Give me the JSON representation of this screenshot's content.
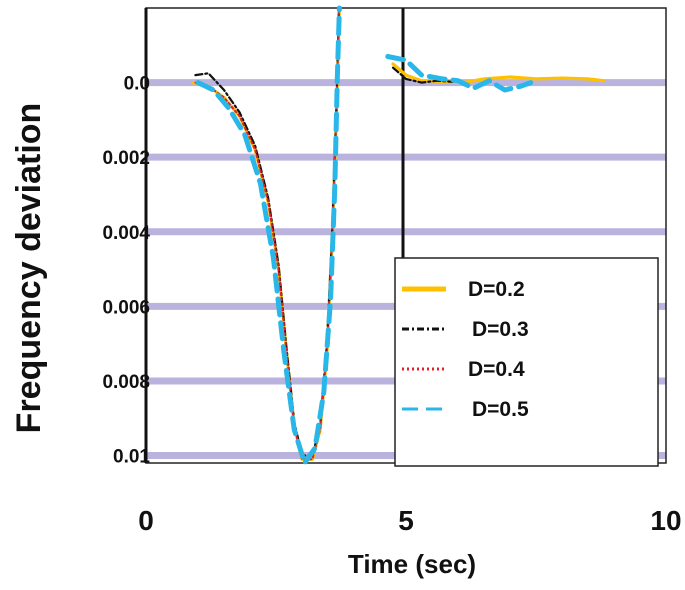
{
  "chart_data": {
    "type": "line",
    "title": "",
    "xlabel": "Time (sec)",
    "ylabel": "Frequency deviation",
    "xlim": [
      0,
      10
    ],
    "ylim": [
      -0.0102,
      0.002
    ],
    "x_ticks": [
      {
        "value": 0,
        "label": "0"
      },
      {
        "value": 5,
        "label": "5"
      },
      {
        "value": 10,
        "label": "10"
      }
    ],
    "y_ticks": [
      {
        "value": 0,
        "label": "0.0"
      },
      {
        "value": -0.002,
        "label": "0.002"
      },
      {
        "value": -0.004,
        "label": "0.004"
      },
      {
        "value": -0.006,
        "label": "0.006"
      },
      {
        "value": -0.008,
        "label": "0.008"
      },
      {
        "value": -0.01,
        "label": "0.01"
      }
    ],
    "grid": "horizontal",
    "legend_position": "bottom-right",
    "series": [
      {
        "name": "D=0.2",
        "color": "#ffc000",
        "dash": "solid",
        "points": [
          [
            0.9,
            0
          ],
          [
            1.2,
            -0.0001
          ],
          [
            1.5,
            -0.0004
          ],
          [
            1.8,
            -0.0009
          ],
          [
            2.1,
            -0.0018
          ],
          [
            2.35,
            -0.0032
          ],
          [
            2.55,
            -0.005
          ],
          [
            2.7,
            -0.0072
          ],
          [
            2.85,
            -0.0092
          ],
          [
            3.0,
            -0.0101
          ],
          [
            3.2,
            -0.0101
          ],
          [
            3.35,
            -0.0093
          ],
          [
            3.48,
            -0.0072
          ],
          [
            3.58,
            -0.0042
          ],
          [
            3.66,
            -0.001
          ],
          [
            3.72,
            0.002
          ]
        ]
      },
      {
        "name": "D=0.3",
        "color": "#111111",
        "dash": "dashdot",
        "points": [
          [
            0.95,
            0.0002
          ],
          [
            1.2,
            0.00025
          ],
          [
            1.5,
            -0.0002
          ],
          [
            1.8,
            -0.0008
          ],
          [
            2.1,
            -0.0017
          ],
          [
            2.35,
            -0.0031
          ],
          [
            2.55,
            -0.0049
          ],
          [
            2.7,
            -0.0071
          ],
          [
            2.85,
            -0.0091
          ],
          [
            3.0,
            -0.01
          ],
          [
            3.2,
            -0.01
          ],
          [
            3.35,
            -0.0092
          ],
          [
            3.48,
            -0.007
          ],
          [
            3.58,
            -0.004
          ],
          [
            3.66,
            -0.0008
          ],
          [
            3.71,
            0.002
          ]
        ]
      },
      {
        "name": "D=0.4",
        "color": "#e0202a",
        "dash": "dot",
        "points": [
          [
            0.95,
            0
          ],
          [
            1.2,
            -0.0001
          ],
          [
            1.5,
            -0.0004
          ],
          [
            1.8,
            -0.0009
          ],
          [
            2.1,
            -0.0018
          ],
          [
            2.35,
            -0.0032
          ],
          [
            2.55,
            -0.005
          ],
          [
            2.7,
            -0.0072
          ],
          [
            2.85,
            -0.0092
          ],
          [
            3.0,
            -0.0101
          ],
          [
            3.2,
            -0.0101
          ],
          [
            3.35,
            -0.0093
          ],
          [
            3.48,
            -0.0071
          ],
          [
            3.58,
            -0.0041
          ],
          [
            3.66,
            -0.0009
          ],
          [
            3.71,
            0.002
          ]
        ]
      },
      {
        "name": "D=0.5",
        "color": "#29b6e8",
        "dash": "longdash",
        "points": [
          [
            1.0,
            0
          ],
          [
            1.3,
            -0.0002
          ],
          [
            1.6,
            -0.0007
          ],
          [
            1.9,
            -0.0014
          ],
          [
            2.2,
            -0.0027
          ],
          [
            2.45,
            -0.0047
          ],
          [
            2.65,
            -0.0072
          ],
          [
            2.85,
            -0.0093
          ],
          [
            3.05,
            -0.0102
          ],
          [
            3.25,
            -0.0098
          ],
          [
            3.42,
            -0.0083
          ],
          [
            3.55,
            -0.0058
          ],
          [
            3.63,
            -0.0028
          ],
          [
            3.68,
            0.0002
          ],
          [
            3.72,
            0.002
          ]
        ]
      },
      {
        "name": "D=0.2",
        "color": "#ffc000",
        "dash": "solid",
        "points": [
          [
            4.75,
            0.0005
          ],
          [
            5.0,
            0.0002
          ],
          [
            5.3,
            5e-05
          ],
          [
            5.7,
            3e-05
          ],
          [
            6.1,
            0
          ],
          [
            6.5,
            0.0001
          ],
          [
            7.0,
            0.00015
          ],
          [
            7.5,
            0.0001
          ],
          [
            8.0,
            0.00012
          ],
          [
            8.5,
            0.0001
          ],
          [
            8.8,
            5e-05
          ]
        ]
      },
      {
        "name": "D=0.3",
        "color": "#111111",
        "dash": "dashdot",
        "points": [
          [
            4.75,
            0.0004
          ],
          [
            5.0,
            0.0001
          ],
          [
            5.3,
            0
          ],
          [
            5.6,
            5e-05
          ],
          [
            5.9,
            2e-05
          ]
        ]
      },
      {
        "name": "D=0.5",
        "color": "#29b6e8",
        "dash": "longdash",
        "points": [
          [
            4.65,
            0.0007
          ],
          [
            5.0,
            0.0006
          ],
          [
            5.3,
            0.0002
          ],
          [
            5.7,
            0.0001
          ],
          [
            6.0,
            5e-05
          ],
          [
            6.3,
            -0.00015
          ],
          [
            6.6,
            5e-05
          ],
          [
            6.9,
            -0.0002
          ],
          [
            7.2,
            -0.0001
          ],
          [
            7.4,
            0
          ]
        ]
      }
    ],
    "legend": [
      "D=0.2",
      "D=0.3",
      "D=0.4",
      "D=0.5"
    ]
  }
}
